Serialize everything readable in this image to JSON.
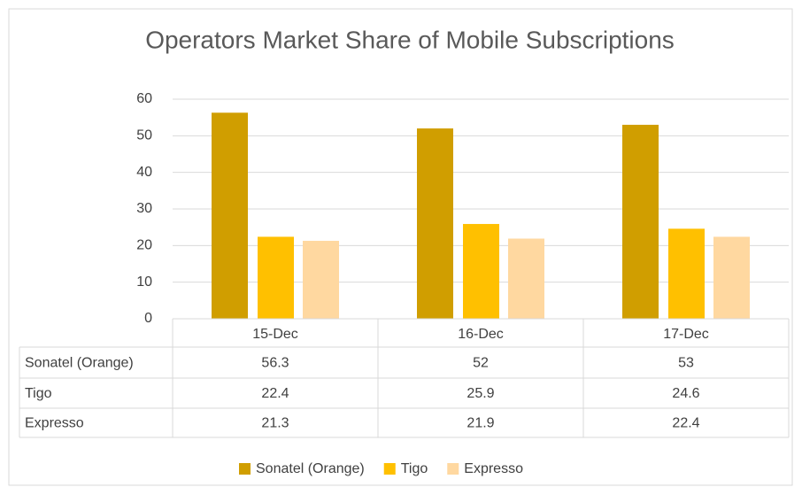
{
  "chart_data": {
    "type": "bar",
    "title": "Operators Market Share of Mobile Subscriptions",
    "categories": [
      "15-Dec",
      "16-Dec",
      "17-Dec"
    ],
    "series": [
      {
        "name": "Sonatel (Orange)",
        "color": "#d09e00",
        "values": [
          56.3,
          52,
          53
        ]
      },
      {
        "name": "Tigo",
        "color": "#ffc000",
        "values": [
          22.4,
          25.9,
          24.6
        ]
      },
      {
        "name": "Expresso",
        "color": "#ffd8a0",
        "values": [
          21.3,
          21.9,
          22.4
        ]
      }
    ],
    "ylim": [
      0,
      60
    ],
    "yticks": [
      0,
      10,
      20,
      30,
      40,
      50,
      60
    ],
    "grid": true,
    "legend": "bottom"
  }
}
